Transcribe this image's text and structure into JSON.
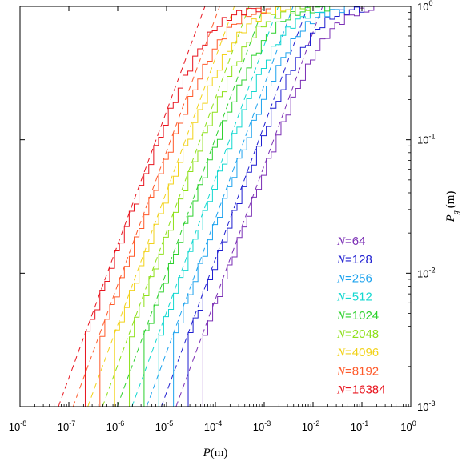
{
  "chart_data": {
    "type": "line",
    "xscale": "log",
    "yscale": "log",
    "xlim": [
      1e-08,
      1
    ],
    "ylim": [
      0.001,
      1
    ],
    "xlabel": {
      "var": "P",
      "unit": "(m)"
    },
    "ylabel": {
      "var": "P",
      "sub": "g",
      "unit": "(m)"
    },
    "x_ticks": [
      {
        "base": "10",
        "exp": "-8",
        "value": 1e-08
      },
      {
        "base": "10",
        "exp": "-7",
        "value": 1e-07
      },
      {
        "base": "10",
        "exp": "-6",
        "value": 1e-06
      },
      {
        "base": "10",
        "exp": "-5",
        "value": 1e-05
      },
      {
        "base": "10",
        "exp": "-4",
        "value": 0.0001
      },
      {
        "base": "10",
        "exp": "-3",
        "value": 0.001
      },
      {
        "base": "10",
        "exp": "-2",
        "value": 0.01
      },
      {
        "base": "10",
        "exp": "-1",
        "value": 0.1
      },
      {
        "base": "10",
        "exp": "0",
        "value": 1
      }
    ],
    "y_ticks": [
      {
        "base": "10",
        "exp": "-3",
        "value": 0.001
      },
      {
        "base": "10",
        "exp": "-2",
        "value": 0.01
      },
      {
        "base": "10",
        "exp": "-1",
        "value": 0.1
      },
      {
        "base": "10",
        "exp": "0",
        "value": 1
      }
    ],
    "legend_position": "bottom-right",
    "grid": false,
    "series_style": "staircase empirical CDF (solid) with dashed linear reference P_g = N·P, capped at 1",
    "series": [
      {
        "name_var": "N",
        "name_value": "=64",
        "N": 64,
        "color": "#7b2fb5"
      },
      {
        "name_var": "N",
        "name_value": "=128",
        "N": 128,
        "color": "#1f1fd0"
      },
      {
        "name_var": "N",
        "name_value": "=256",
        "N": 256,
        "color": "#1ea3ee"
      },
      {
        "name_var": "N",
        "name_value": "=512",
        "N": 512,
        "color": "#13d8d0"
      },
      {
        "name_var": "N",
        "name_value": "=1024",
        "N": 1024,
        "color": "#2ed12e"
      },
      {
        "name_var": "N",
        "name_value": "=2048",
        "N": 2048,
        "color": "#8ee01a"
      },
      {
        "name_var": "N",
        "name_value": "=4096",
        "N": 4096,
        "color": "#f2d21a"
      },
      {
        "name_var": "N",
        "name_value": "=8192",
        "N": 8192,
        "color": "#ff5a2a"
      },
      {
        "name_var": "N",
        "name_value": "=16384",
        "N": 16384,
        "color": "#e8141e"
      }
    ]
  }
}
